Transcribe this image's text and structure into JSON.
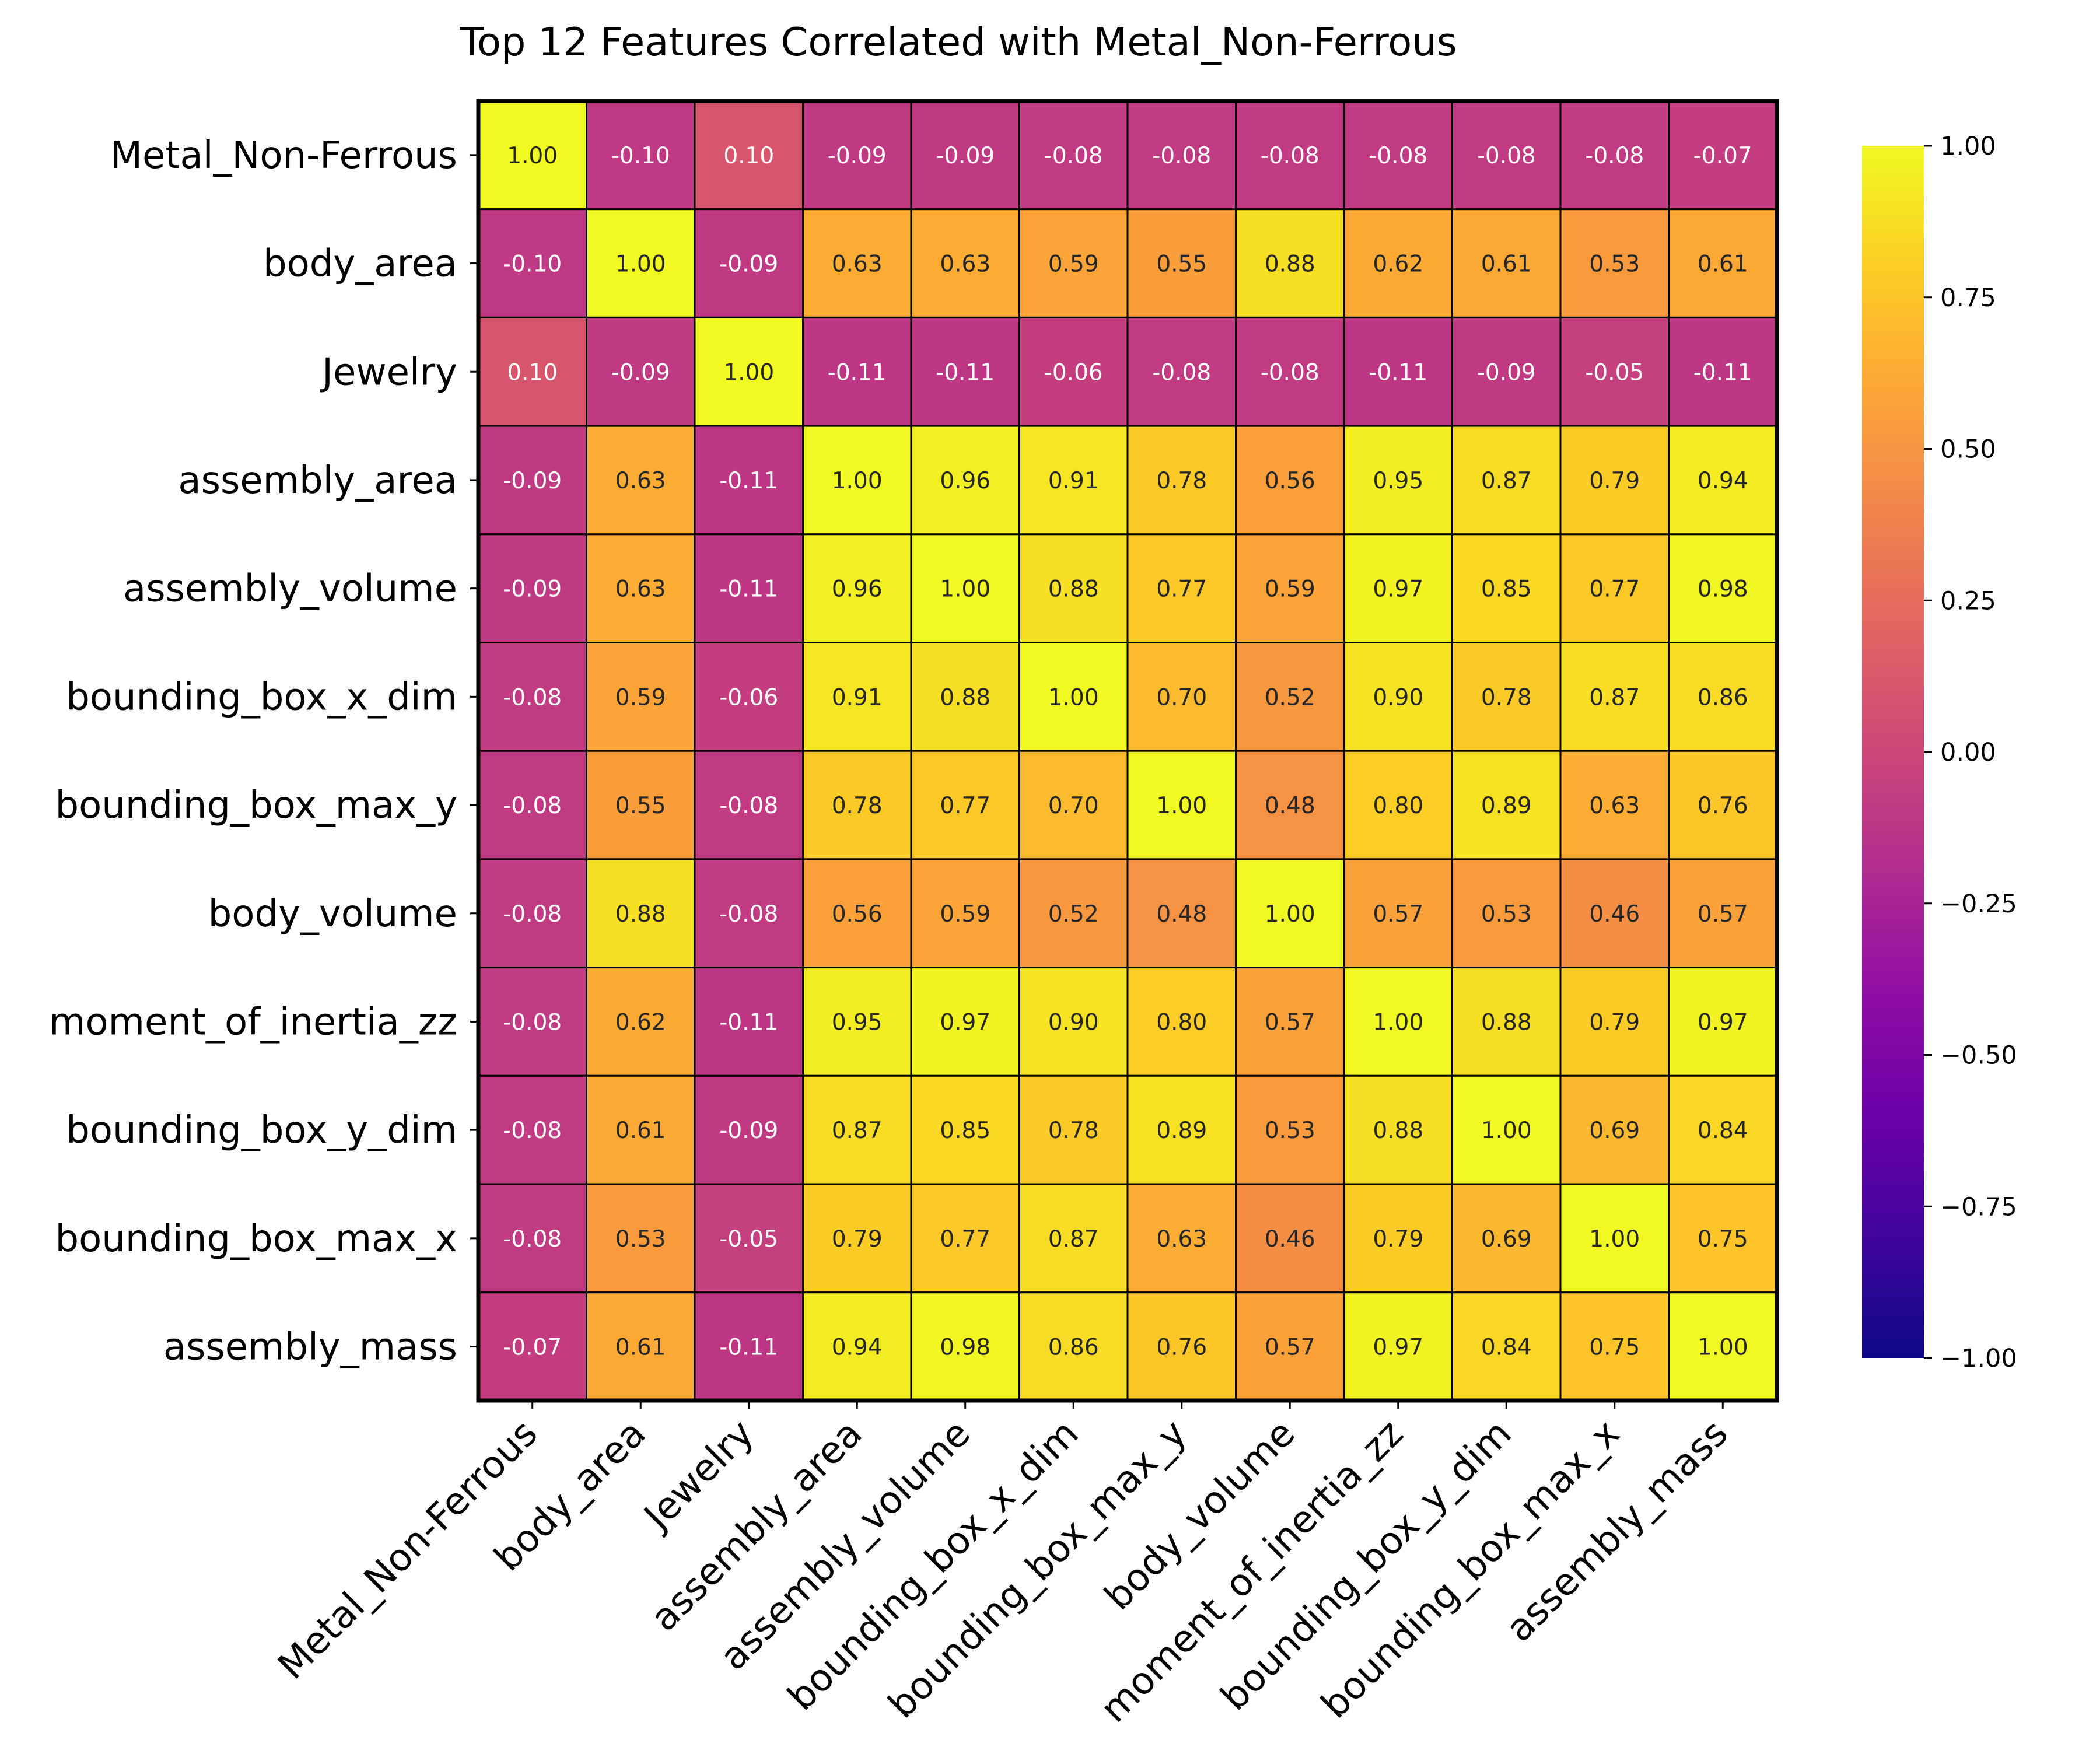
{
  "chart_data": {
    "type": "heatmap",
    "title": "Top 12 Features Correlated with Metal_Non-Ferrous",
    "labels": [
      "Metal_Non-Ferrous",
      "body_area",
      "Jewelry",
      "assembly_area",
      "assembly_volume",
      "bounding_box_x_dim",
      "bounding_box_max_y",
      "body_volume",
      "moment_of_inertia_zz",
      "bounding_box_y_dim",
      "bounding_box_max_x",
      "assembly_mass"
    ],
    "matrix": [
      [
        1.0,
        -0.1,
        0.1,
        -0.09,
        -0.09,
        -0.08,
        -0.08,
        -0.08,
        -0.08,
        -0.08,
        -0.08,
        -0.07
      ],
      [
        -0.1,
        1.0,
        -0.09,
        0.63,
        0.63,
        0.59,
        0.55,
        0.88,
        0.62,
        0.61,
        0.53,
        0.61
      ],
      [
        0.1,
        -0.09,
        1.0,
        -0.11,
        -0.11,
        -0.06,
        -0.08,
        -0.08,
        -0.11,
        -0.09,
        -0.05,
        -0.11
      ],
      [
        -0.09,
        0.63,
        -0.11,
        1.0,
        0.96,
        0.91,
        0.78,
        0.56,
        0.95,
        0.87,
        0.79,
        0.94
      ],
      [
        -0.09,
        0.63,
        -0.11,
        0.96,
        1.0,
        0.88,
        0.77,
        0.59,
        0.97,
        0.85,
        0.77,
        0.98
      ],
      [
        -0.08,
        0.59,
        -0.06,
        0.91,
        0.88,
        1.0,
        0.7,
        0.52,
        0.9,
        0.78,
        0.87,
        0.86
      ],
      [
        -0.08,
        0.55,
        -0.08,
        0.78,
        0.77,
        0.7,
        1.0,
        0.48,
        0.8,
        0.89,
        0.63,
        0.76
      ],
      [
        -0.08,
        0.88,
        -0.08,
        0.56,
        0.59,
        0.52,
        0.48,
        1.0,
        0.57,
        0.53,
        0.46,
        0.57
      ],
      [
        -0.08,
        0.62,
        -0.11,
        0.95,
        0.97,
        0.9,
        0.8,
        0.57,
        1.0,
        0.88,
        0.79,
        0.97
      ],
      [
        -0.08,
        0.61,
        -0.09,
        0.87,
        0.85,
        0.78,
        0.89,
        0.53,
        0.88,
        1.0,
        0.69,
        0.84
      ],
      [
        -0.08,
        0.53,
        -0.05,
        0.79,
        0.77,
        0.87,
        0.63,
        0.46,
        0.79,
        0.69,
        1.0,
        0.75
      ],
      [
        -0.07,
        0.61,
        -0.11,
        0.94,
        0.98,
        0.86,
        0.76,
        0.57,
        0.97,
        0.84,
        0.75,
        1.0
      ]
    ],
    "colorscale": "plasma",
    "vmin": -1.0,
    "vmax": 1.0,
    "colorbar_ticks": [
      "1.00",
      "0.75",
      "0.50",
      "0.25",
      "0.00",
      "−0.25",
      "−0.50",
      "−0.75",
      "−1.00"
    ],
    "annotations": "cell values shown with two decimals",
    "grid": true
  }
}
